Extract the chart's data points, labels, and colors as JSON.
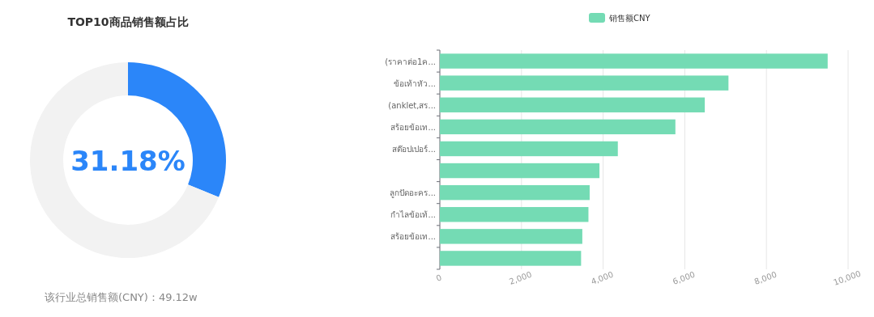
{
  "chart_data": [
    {
      "type": "donut",
      "title": "TOP10商品销售额占比",
      "categories": [
        null,
        null
      ],
      "values": [
        31.18,
        68.82
      ],
      "colors": [
        "#2b86f9",
        "#f2f2f2"
      ],
      "annotations": [
        "31.18%",
        "该行业总销售额(CNY)：49.12w"
      ]
    },
    {
      "type": "bar",
      "orientation": "horizontal",
      "categories": [
        "(ราคาต่อ1ค...",
        "ข้อเท้าหัว...",
        "(anklet,สร...",
        "สร้อยข้อเท...",
        "สต๊อปเปอร์...",
        null,
        "ลูกปัดอะคร...",
        "กำไลข้อเท้...",
        "สร้อยข้อเท...",
        null
      ],
      "series": [
        {
          "name": "销售额CNY",
          "color": "#74dbb4",
          "values": [
            9500,
            7070,
            6490,
            5770,
            4360,
            3910,
            3670,
            3640,
            3490,
            3460
          ]
        }
      ],
      "xlim": [
        0,
        10000
      ],
      "xticks": [
        0,
        {
          "value": 2000,
          "label": "2,000"
        },
        {
          "value": 4000,
          "label": "4,000"
        },
        {
          "value": 6000,
          "label": "6,000"
        },
        {
          "value": 8000,
          "label": "8,000"
        },
        {
          "value": 10000,
          "label": "10,000"
        }
      ],
      "grid": "x",
      "legend": "top"
    }
  ]
}
